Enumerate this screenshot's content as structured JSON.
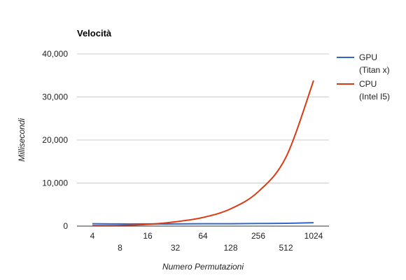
{
  "chart_data": {
    "type": "line",
    "title": "Velocità",
    "xlabel": "Numero Permutazioni",
    "ylabel": "Millisecondi",
    "categories": [
      "4",
      "8",
      "16",
      "32",
      "64",
      "128",
      "256",
      "512",
      "1024"
    ],
    "ylim": [
      0,
      40000
    ],
    "yticks": [
      0,
      10000,
      20000,
      30000,
      40000
    ],
    "ytick_labels": [
      "0",
      "10,000",
      "20,000",
      "30,000",
      "40,000"
    ],
    "grid": true,
    "legend_position": "right",
    "series": [
      {
        "name": "GPU",
        "legend_line2": "(Titan x)",
        "color": "#3366cc",
        "values": [
          550,
          500,
          500,
          500,
          550,
          550,
          600,
          650,
          800
        ]
      },
      {
        "name": "CPU",
        "legend_line2": "(Intel I5)",
        "color": "#dc3912",
        "values": [
          100,
          150,
          400,
          1000,
          2000,
          4000,
          8000,
          16000,
          33800
        ]
      }
    ]
  }
}
